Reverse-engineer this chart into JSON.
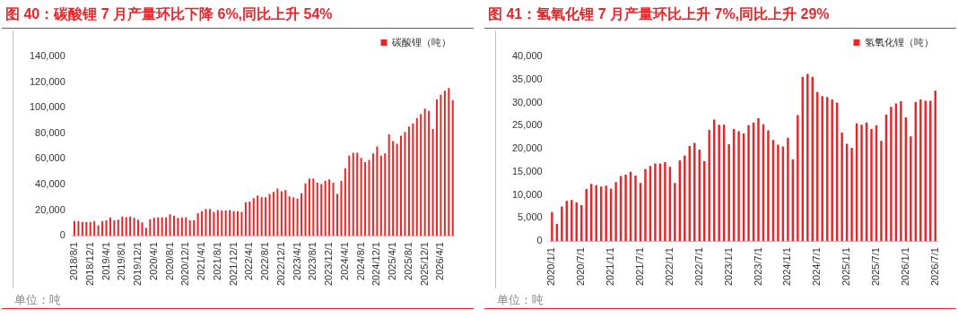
{
  "chart_data": [
    {
      "type": "bar",
      "title": "图 40：碳酸锂 7 月产量环比下降 6%,同比上升 54%",
      "annotations": [
        "单位：吨"
      ],
      "legend": "top",
      "grid": false,
      "categories": [
        "2018/8/1",
        null,
        null,
        null,
        "2018/12/1",
        null,
        null,
        null,
        "2019/4/1",
        null,
        null,
        null,
        "2019/8/1",
        null,
        null,
        null,
        "2019/12/1",
        null,
        null,
        null,
        "2020/4/1",
        null,
        null,
        null,
        "2020/8/1",
        null,
        null,
        null,
        "2020/12/1",
        null,
        null,
        null,
        "2021/4/1",
        null,
        null,
        null,
        "2021/8/1",
        null,
        null,
        null,
        "2021/12/1",
        null,
        null,
        null,
        "2022/4/1",
        null,
        null,
        null,
        "2022/8/1",
        null,
        null,
        null,
        "2022/12/1",
        null,
        null,
        null,
        "2023/4/1",
        null,
        null,
        null,
        "2023/8/1",
        null,
        null,
        null,
        "2023/12/1",
        null,
        null,
        null,
        "2024/4/1",
        null,
        null,
        null,
        "2024/8/1",
        null,
        null,
        null,
        "2024/12/1",
        null,
        null,
        null,
        "2025/4/1",
        null,
        null,
        null,
        "2025/8/1",
        null,
        null,
        null,
        "2025/12/1",
        null,
        null,
        null,
        "2026/4/1",
        null,
        null,
        null
      ],
      "series": [
        {
          "name": "碳酸锂（吨）",
          "color": "#e8262a",
          "values": [
            11400,
            11400,
            10800,
            10800,
            10800,
            11400,
            8100,
            11400,
            12000,
            14200,
            12000,
            12500,
            15000,
            14400,
            15000,
            13900,
            12500,
            10300,
            6100,
            12800,
            13900,
            14200,
            14400,
            14200,
            16700,
            15600,
            13900,
            14200,
            14400,
            12000,
            12000,
            17500,
            19200,
            20800,
            20800,
            18600,
            20000,
            19700,
            19700,
            20000,
            19200,
            19200,
            18600,
            26100,
            26700,
            29200,
            31400,
            30000,
            30000,
            32500,
            34200,
            36700,
            34700,
            35600,
            30600,
            30000,
            28900,
            33100,
            40800,
            44700,
            44700,
            41400,
            40300,
            42800,
            43900,
            41400,
            32500,
            42800,
            52500,
            62500,
            64700,
            64700,
            60800,
            57500,
            59200,
            64200,
            69700,
            62500,
            64200,
            79200,
            73900,
            71700,
            78100,
            81100,
            85300,
            87500,
            91900,
            95000,
            99200,
            97500,
            83300,
            106400,
            110000,
            113300,
            115300,
            105800
          ]
        }
      ],
      "ylim": [
        0,
        140000
      ],
      "yticks": [
        0,
        {
          "value": 20000,
          "label": "20,000"
        },
        {
          "value": 40000,
          "label": "40,000"
        },
        {
          "value": 60000,
          "label": "60,000"
        },
        {
          "value": 80000,
          "label": "80,000"
        },
        {
          "value": 100000,
          "label": "100,000"
        },
        {
          "value": 120000,
          "label": "120,000"
        },
        {
          "value": 140000,
          "label": "140,000"
        }
      ]
    },
    {
      "type": "bar",
      "title": "图 41：氢氧化锂 7 月产量环比上升 7%,同比上升 29%",
      "annotations": [
        "单位：吨"
      ],
      "legend": "top",
      "grid": false,
      "categories": [
        "2020/1/1",
        null,
        null,
        null,
        null,
        null,
        "2020/7/1",
        null,
        null,
        null,
        null,
        null,
        "2021/1/1",
        null,
        null,
        null,
        null,
        null,
        "2021/7/1",
        null,
        null,
        null,
        null,
        null,
        "2022/1/1",
        null,
        null,
        null,
        null,
        null,
        "2022/7/1",
        null,
        null,
        null,
        null,
        null,
        "2023/1/1",
        null,
        null,
        null,
        null,
        null,
        "2023/7/1",
        null,
        null,
        null,
        null,
        null,
        "2024/1/1",
        null,
        null,
        null,
        null,
        null,
        "2024/7/1",
        null,
        null,
        null,
        null,
        null,
        "2025/1/1",
        null,
        null,
        null,
        null,
        null,
        "2025/7/1",
        null,
        null,
        null,
        null,
        null,
        "2026/1/1",
        null,
        null,
        null,
        null,
        null,
        "2026/7/1"
      ],
      "series": [
        {
          "name": "氢氧化锂（吨）",
          "color": "#e8262a",
          "values": [
            6300,
            3700,
            7500,
            8700,
            8900,
            8400,
            7800,
            11300,
            12400,
            12100,
            11800,
            12000,
            11400,
            12800,
            14100,
            14400,
            15000,
            14200,
            12600,
            15600,
            16300,
            16800,
            16800,
            17100,
            16100,
            12600,
            17500,
            18500,
            20600,
            21300,
            19800,
            17300,
            24100,
            26300,
            25200,
            25200,
            21000,
            24300,
            23800,
            23300,
            25100,
            25700,
            26600,
            25300,
            24000,
            21900,
            20900,
            20500,
            22400,
            17700,
            27300,
            35600,
            36200,
            35600,
            32300,
            31400,
            31200,
            30700,
            30000,
            23500,
            21100,
            20200,
            25500,
            25200,
            25700,
            24300,
            25100,
            21700,
            27400,
            29100,
            29800,
            30300,
            26800,
            22700,
            30100,
            30700,
            30400,
            30400,
            32600
          ]
        }
      ],
      "ylim": [
        0,
        40000
      ],
      "yticks": [
        0,
        {
          "value": 5000,
          "label": "5,000"
        },
        {
          "value": 10000,
          "label": "10,000"
        },
        {
          "value": 15000,
          "label": "15,000"
        },
        {
          "value": 20000,
          "label": "20,000"
        },
        {
          "value": 25000,
          "label": "25,000"
        },
        {
          "value": 30000,
          "label": "30,000"
        },
        {
          "value": 35000,
          "label": "35,000"
        },
        {
          "value": 40000,
          "label": "40,000"
        }
      ]
    }
  ]
}
